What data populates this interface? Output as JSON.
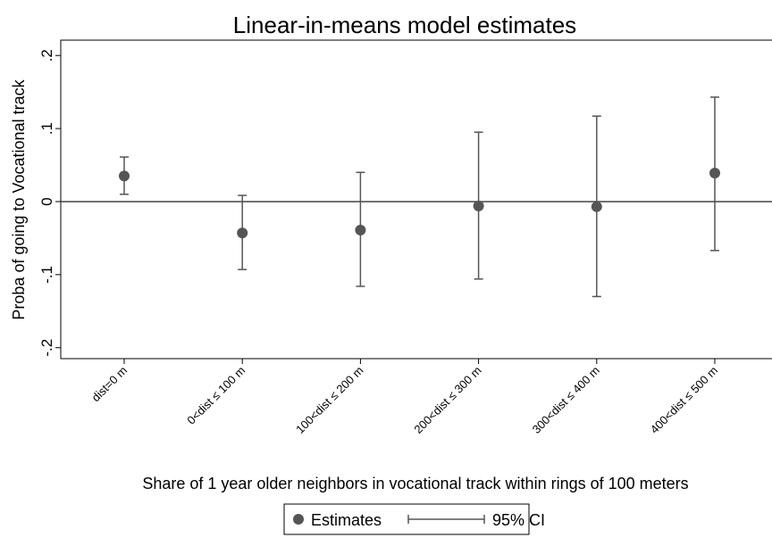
{
  "chart_data": {
    "type": "errorbar",
    "title": "Linear-in-means model estimates",
    "x_label": "Share of 1 year older neighbors in vocational track within rings of 100 meters",
    "y_label": "Proba of going to Vocational track",
    "categories": [
      "dist=0 m",
      "0<dist ≤ 100 m",
      "100<dist ≤ 200 m",
      "200<dist ≤ 300 m",
      "300<dist ≤ 400 m",
      "400<dist ≤ 500 m"
    ],
    "series": [
      {
        "name": "Estimates",
        "color": "#555555",
        "values": [
          0.035,
          -0.043,
          -0.039,
          -0.006,
          -0.007,
          0.039
        ]
      }
    ],
    "ci": {
      "name": "95% CI",
      "color": "#555555",
      "lower": [
        0.01,
        -0.093,
        -0.116,
        -0.106,
        -0.13,
        -0.067
      ],
      "upper": [
        0.061,
        0.0085,
        0.04,
        0.095,
        0.117,
        0.143
      ]
    },
    "ylim": [
      -0.215,
      0.221
    ],
    "yticks": [
      {
        "value": -0.2,
        "label": "-.2"
      },
      {
        "value": -0.1,
        "label": "-.1"
      },
      0,
      {
        "value": 0.1,
        "label": ".1"
      },
      {
        "value": 0.2,
        "label": ".2"
      }
    ],
    "yline": 0,
    "grid": false,
    "legend": "bottom"
  }
}
